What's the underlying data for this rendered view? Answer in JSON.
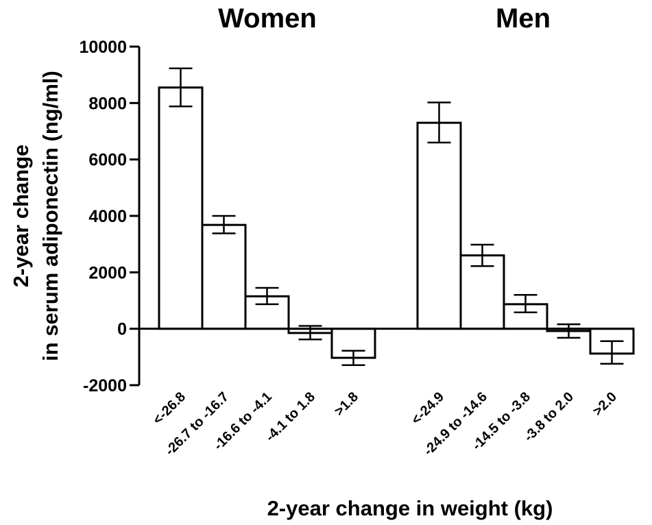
{
  "chart_data": {
    "type": "bar",
    "group_titles": [
      "Women",
      "Men"
    ],
    "ylabel_lines": [
      "2-year change",
      "in serum adiponectin (ng/ml)"
    ],
    "xlabel": "2-year change in weight (kg)",
    "ylim": [
      -2000,
      10000
    ],
    "yticks": [
      "-2000",
      "0",
      "2000",
      "4000",
      "6000",
      "8000",
      "10000"
    ],
    "groups": [
      {
        "name": "Women",
        "categories": [
          "<-26.8",
          "-26.7 to -16.7",
          "-16.6 to -4.1",
          "-4.1 to 1.8",
          ">1.8"
        ],
        "values": [
          8550,
          3680,
          1150,
          -150,
          -1030
        ],
        "error_low": [
          7880,
          3380,
          870,
          -380,
          -1290
        ],
        "error_high": [
          9230,
          4000,
          1450,
          100,
          -780
        ]
      },
      {
        "name": "Men",
        "categories": [
          "<-24.9",
          "-24.9 to -14.6",
          "-14.5 to -3.8",
          "-3.8 to 2.0",
          ">2.0"
        ],
        "values": [
          7300,
          2600,
          870,
          -80,
          -880
        ],
        "error_low": [
          6600,
          2220,
          580,
          -320,
          -1240
        ],
        "error_high": [
          8020,
          2980,
          1200,
          160,
          -440
        ]
      }
    ],
    "grid": false,
    "legend": "none",
    "bar_fill": "#ffffff",
    "bar_stroke": "#000000"
  }
}
